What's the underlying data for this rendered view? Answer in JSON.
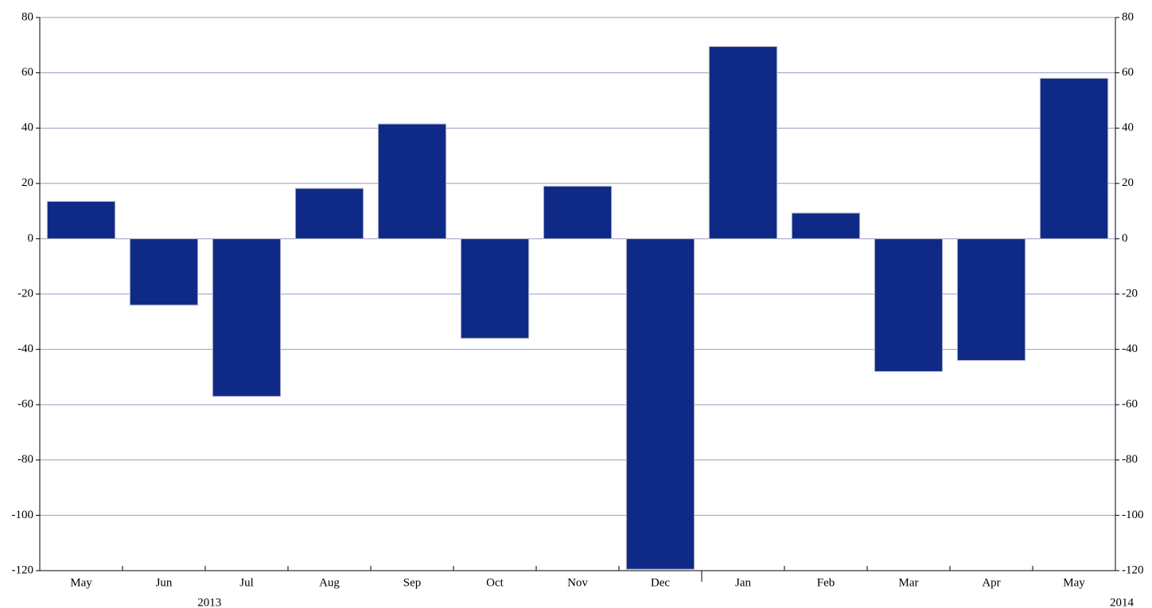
{
  "chart_data": {
    "type": "bar",
    "categories": [
      "May",
      "Jun",
      "Jul",
      "Aug",
      "Sep",
      "Oct",
      "Nov",
      "Dec",
      "Jan",
      "Feb",
      "Mar",
      "Apr",
      "May"
    ],
    "year_labels": [
      "2013",
      "2014"
    ],
    "values": [
      13.5,
      -24,
      -57,
      18.2,
      41.5,
      -36,
      19,
      -119.5,
      69.5,
      9.3,
      -48,
      -44,
      58
    ],
    "color": "#0f2a86",
    "ylim": [
      -120,
      80
    ],
    "yticks": [
      -120,
      -100,
      -80,
      -60,
      -40,
      -20,
      0,
      20,
      40,
      60,
      80
    ],
    "grid": true
  }
}
